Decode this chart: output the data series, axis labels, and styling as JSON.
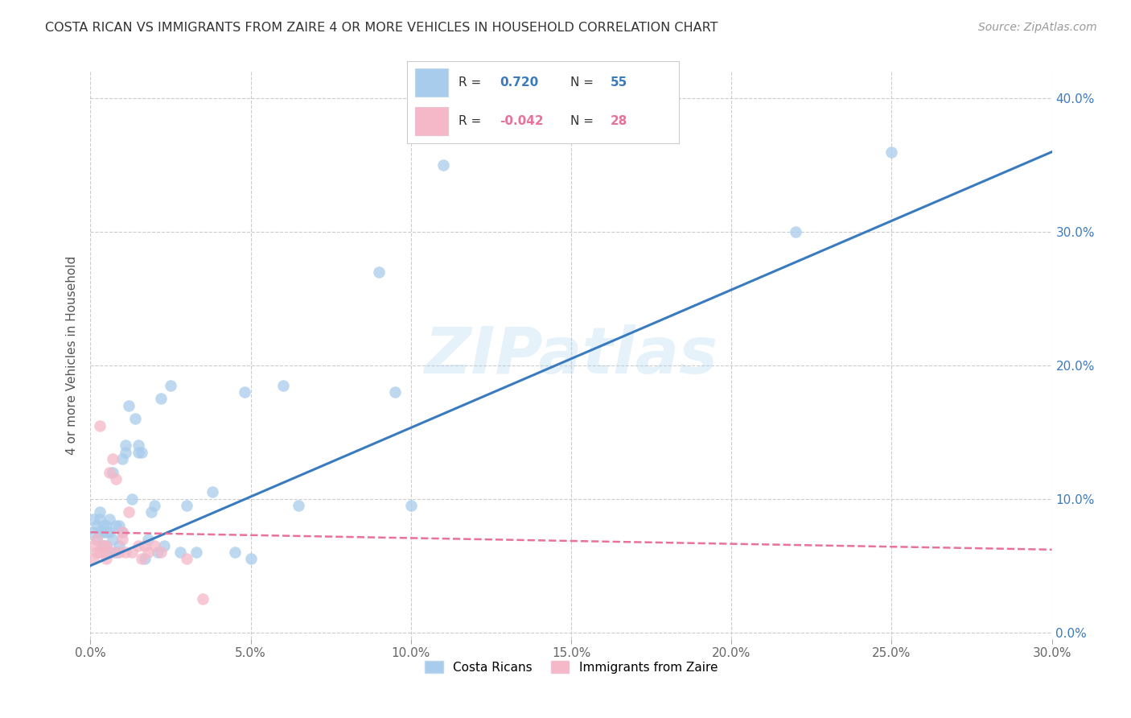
{
  "title": "COSTA RICAN VS IMMIGRANTS FROM ZAIRE 4 OR MORE VEHICLES IN HOUSEHOLD CORRELATION CHART",
  "source": "Source: ZipAtlas.com",
  "ylabel": "4 or more Vehicles in Household",
  "xlim": [
    0.0,
    0.3
  ],
  "ylim": [
    -0.005,
    0.42
  ],
  "x_tick_vals": [
    0.0,
    0.05,
    0.1,
    0.15,
    0.2,
    0.25,
    0.3
  ],
  "x_tick_labels": [
    "0.0%",
    "5.0%",
    "10.0%",
    "15.0%",
    "20.0%",
    "25.0%",
    "30.0%"
  ],
  "y_tick_vals": [
    0.0,
    0.1,
    0.2,
    0.3,
    0.4
  ],
  "y_tick_labels_right": [
    "0.0%",
    "10.0%",
    "20.0%",
    "30.0%",
    "40.0%"
  ],
  "legend_label1": "Costa Ricans",
  "legend_label2": "Immigrants from Zaire",
  "R1": "0.720",
  "N1": "55",
  "R2": "-0.042",
  "N2": "28",
  "color_blue": "#a8ccec",
  "color_pink": "#f4b8c8",
  "line_color_blue": "#3a7bbf",
  "line_color_pink": "#e8729a",
  "watermark": "ZIPatlas",
  "blue_x": [
    0.001,
    0.001,
    0.002,
    0.002,
    0.003,
    0.003,
    0.003,
    0.004,
    0.004,
    0.004,
    0.005,
    0.005,
    0.005,
    0.006,
    0.006,
    0.006,
    0.007,
    0.007,
    0.008,
    0.008,
    0.009,
    0.009,
    0.01,
    0.01,
    0.011,
    0.011,
    0.012,
    0.013,
    0.014,
    0.015,
    0.015,
    0.016,
    0.017,
    0.018,
    0.019,
    0.02,
    0.021,
    0.022,
    0.023,
    0.025,
    0.028,
    0.03,
    0.033,
    0.038,
    0.045,
    0.048,
    0.05,
    0.06,
    0.065,
    0.09,
    0.095,
    0.1,
    0.11,
    0.22,
    0.25
  ],
  "blue_y": [
    0.075,
    0.085,
    0.07,
    0.08,
    0.075,
    0.085,
    0.09,
    0.065,
    0.075,
    0.08,
    0.065,
    0.075,
    0.08,
    0.06,
    0.075,
    0.085,
    0.07,
    0.12,
    0.06,
    0.08,
    0.065,
    0.08,
    0.075,
    0.13,
    0.135,
    0.14,
    0.17,
    0.1,
    0.16,
    0.135,
    0.14,
    0.135,
    0.055,
    0.07,
    0.09,
    0.095,
    0.06,
    0.175,
    0.065,
    0.185,
    0.06,
    0.095,
    0.06,
    0.105,
    0.06,
    0.18,
    0.055,
    0.185,
    0.095,
    0.27,
    0.18,
    0.095,
    0.35,
    0.3,
    0.36
  ],
  "pink_x": [
    0.001,
    0.001,
    0.002,
    0.002,
    0.003,
    0.003,
    0.004,
    0.004,
    0.005,
    0.005,
    0.006,
    0.007,
    0.007,
    0.008,
    0.009,
    0.01,
    0.01,
    0.011,
    0.012,
    0.013,
    0.015,
    0.016,
    0.017,
    0.018,
    0.02,
    0.022,
    0.03,
    0.035
  ],
  "pink_y": [
    0.065,
    0.055,
    0.06,
    0.07,
    0.06,
    0.155,
    0.06,
    0.065,
    0.055,
    0.065,
    0.12,
    0.06,
    0.13,
    0.115,
    0.06,
    0.07,
    0.075,
    0.06,
    0.09,
    0.06,
    0.065,
    0.055,
    0.065,
    0.06,
    0.065,
    0.06,
    0.055,
    0.025
  ],
  "blue_line_x": [
    0.0,
    0.3
  ],
  "blue_line_y": [
    0.05,
    0.36
  ],
  "pink_line_x": [
    0.0,
    0.3
  ],
  "pink_line_y": [
    0.075,
    0.062
  ],
  "background_color": "#ffffff",
  "grid_color": "#cccccc"
}
